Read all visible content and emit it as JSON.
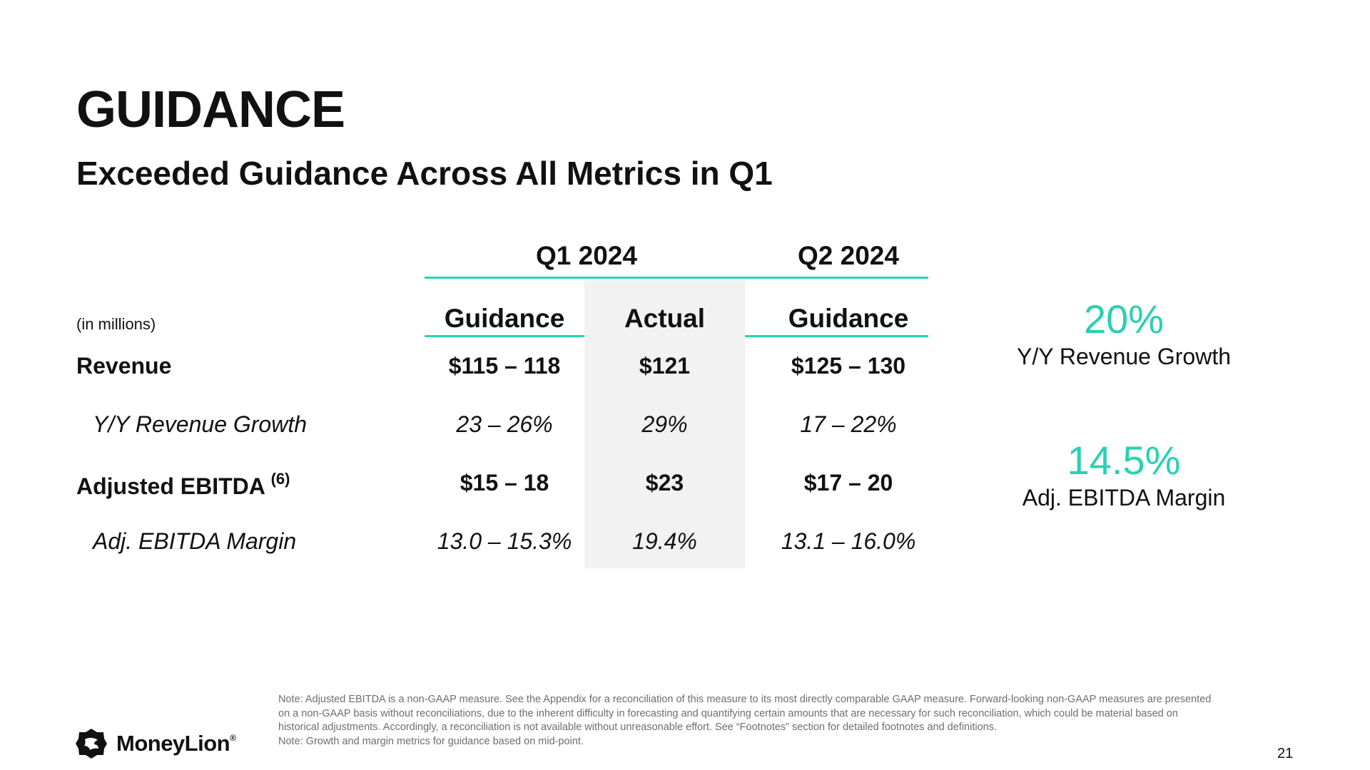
{
  "title": "GUIDANCE",
  "subtitle": "Exceeded Guidance Across All Metrics in Q1",
  "table": {
    "units_note": "(in millions)",
    "period_headers": [
      "Q1 2024",
      "Q2 2024"
    ],
    "column_headers": [
      "Guidance",
      "Actual",
      "Guidance"
    ],
    "rows": [
      {
        "label": "Revenue",
        "superscript": "",
        "style": "bold",
        "values": [
          "$115 – 118",
          "$121",
          "$125 – 130"
        ]
      },
      {
        "label": "Y/Y Revenue Growth",
        "superscript": "",
        "style": "italic",
        "values": [
          "23 – 26%",
          "29%",
          "17 – 22%"
        ]
      },
      {
        "label": "Adjusted EBITDA",
        "superscript": "(6)",
        "style": "bold",
        "values": [
          "$15 – 18",
          "$23",
          "$17 – 20"
        ]
      },
      {
        "label": "Adj. EBITDA Margin",
        "superscript": "",
        "style": "italic",
        "values": [
          "13.0 – 15.3%",
          "19.4%",
          "13.1 – 16.0%"
        ]
      }
    ]
  },
  "highlights": [
    {
      "value": "20%",
      "label": "Y/Y Revenue Growth"
    },
    {
      "value": "14.5%",
      "label": "Adj. EBITDA Margin"
    }
  ],
  "footnote": {
    "line1": "Note: Adjusted EBITDA is a non-GAAP measure. See the Appendix for a reconciliation of this measure to its most directly comparable GAAP measure. Forward-looking non-GAAP measures are presented on a non-GAAP basis without reconciliations, due to the inherent difficulty in forecasting and quantifying certain amounts that are necessary for such reconciliation, which could be material based on historical adjustments. Accordingly, a reconciliation is not available without unreasonable effort. See “Footnotes” section for detailed footnotes and definitions.",
    "line2": "Note: Growth and margin metrics for guidance based on mid-point."
  },
  "brand": {
    "name": "MoneyLion",
    "mark": "®",
    "accent_color": "#2ad0b3"
  },
  "page_number": "21"
}
